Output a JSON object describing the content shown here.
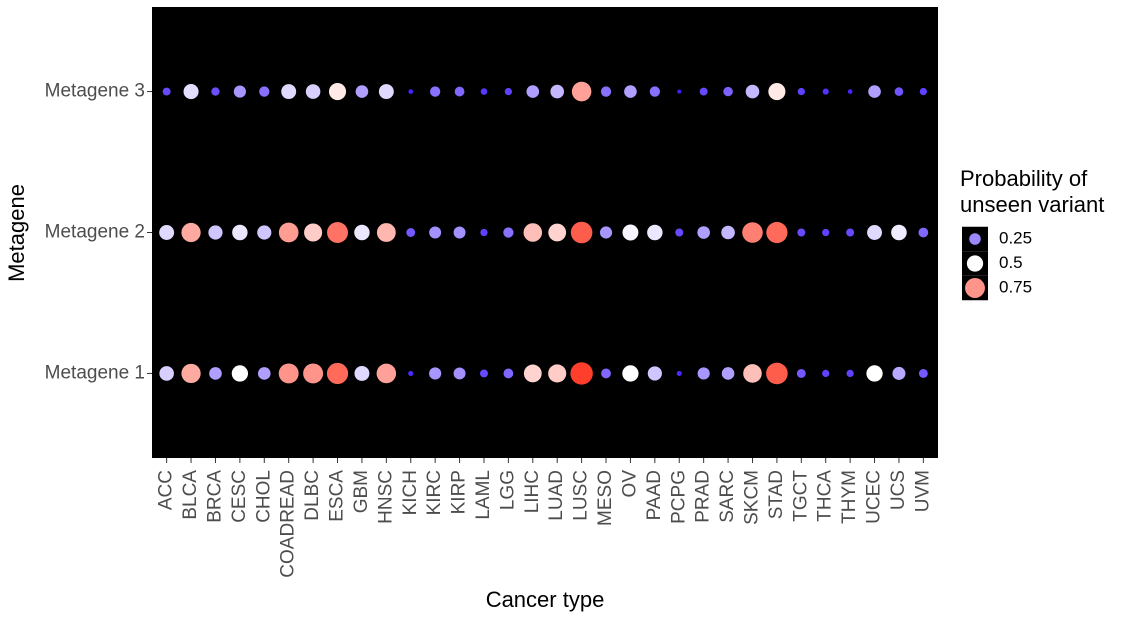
{
  "chart_data": {
    "type": "dot",
    "x_label": "Cancer type",
    "y_label": "Metagene",
    "categories": [
      "ACC",
      "BLCA",
      "BRCA",
      "CESC",
      "CHOL",
      "COADREAD",
      "DLBC",
      "ESCA",
      "GBM",
      "HNSC",
      "KICH",
      "KIRC",
      "KIRP",
      "LAML",
      "LGG",
      "LIHC",
      "LUAD",
      "LUSC",
      "MESO",
      "OV",
      "PAAD",
      "PCPG",
      "PRAD",
      "SARC",
      "SKCM",
      "STAD",
      "TGCT",
      "THCA",
      "THYM",
      "UCEC",
      "UCS",
      "UVM"
    ],
    "series": [
      {
        "name": "Metagene 1",
        "values": [
          0.4,
          0.7,
          0.3,
          0.5,
          0.3,
          0.75,
          0.75,
          0.85,
          0.42,
          0.72,
          0.05,
          0.28,
          0.27,
          0.12,
          0.18,
          0.6,
          0.62,
          0.95,
          0.18,
          0.5,
          0.38,
          0.05,
          0.28,
          0.3,
          0.65,
          0.88,
          0.15,
          0.1,
          0.1,
          0.5,
          0.32,
          0.15
        ]
      },
      {
        "name": "Metagene 2",
        "values": [
          0.42,
          0.7,
          0.38,
          0.45,
          0.38,
          0.73,
          0.62,
          0.83,
          0.45,
          0.67,
          0.15,
          0.27,
          0.27,
          0.1,
          0.2,
          0.65,
          0.6,
          0.88,
          0.28,
          0.48,
          0.45,
          0.12,
          0.3,
          0.35,
          0.8,
          0.85,
          0.12,
          0.1,
          0.12,
          0.42,
          0.46,
          0.18
        ]
      },
      {
        "name": "Metagene 3",
        "values": [
          0.12,
          0.43,
          0.13,
          0.28,
          0.2,
          0.42,
          0.4,
          0.55,
          0.3,
          0.42,
          0.04,
          0.2,
          0.18,
          0.08,
          0.1,
          0.3,
          0.35,
          0.72,
          0.2,
          0.3,
          0.2,
          0.03,
          0.12,
          0.17,
          0.35,
          0.55,
          0.1,
          0.07,
          0.04,
          0.3,
          0.14,
          0.1
        ]
      }
    ],
    "legend": {
      "title": [
        "Probability of",
        "unseen variant"
      ],
      "breaks": [
        0.25,
        0.5,
        0.75
      ]
    },
    "color_scale": {
      "low": "#3a10ff",
      "mid": "#ffffff",
      "high": "#ff2a14"
    },
    "panel_color": "#000000"
  }
}
